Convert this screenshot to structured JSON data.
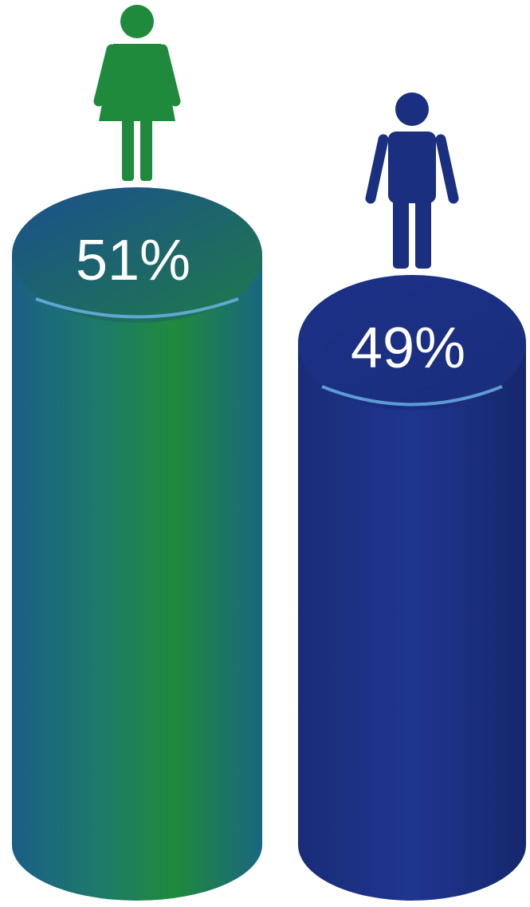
{
  "chart_data": {
    "type": "cylinder",
    "categories": [
      null,
      null
    ],
    "values": [
      51,
      49
    ],
    "value_labels": [
      "51%",
      "49%"
    ],
    "colors": [
      "#1f8a3c",
      "#1b2f80"
    ]
  }
}
